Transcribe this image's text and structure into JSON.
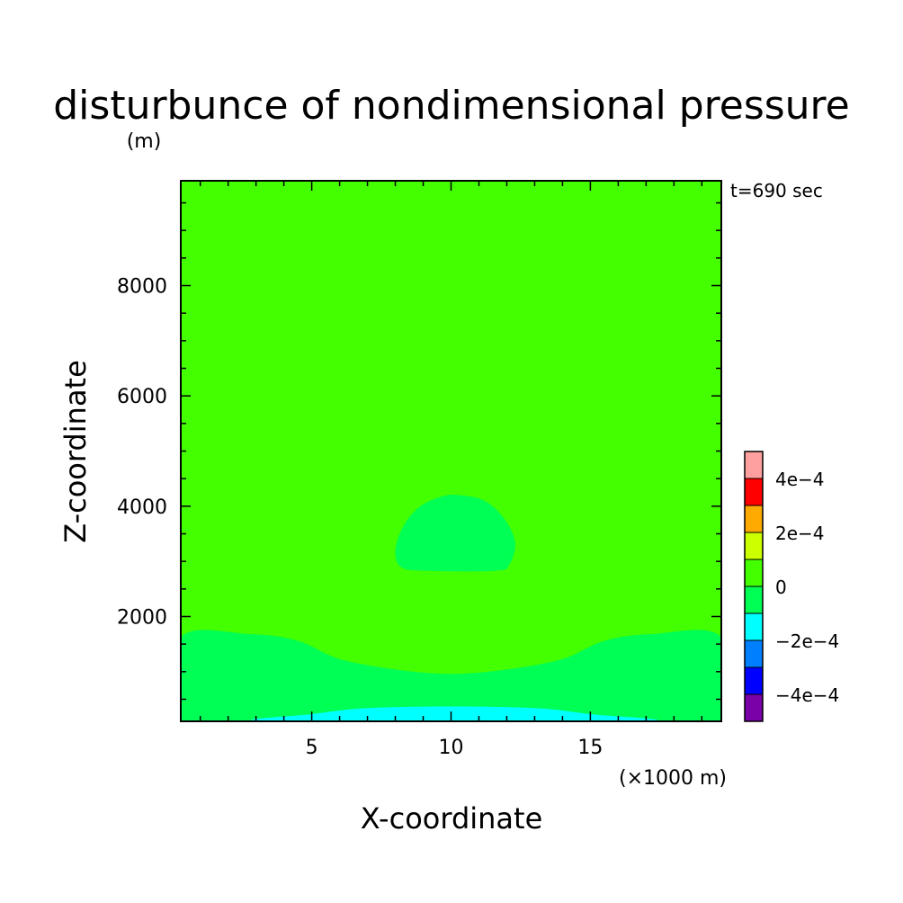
{
  "chart_data": {
    "type": "heatmap",
    "title": "disturbunce of nondimensional pressure",
    "units_label": "(m)",
    "time_label": "t=690 sec",
    "xlabel": "X-coordinate",
    "xunit_label": "(×1000 m)",
    "ylabel": "Z-coordinate",
    "xlim": [
      0.3,
      19.7
    ],
    "ylim": [
      100,
      9900
    ],
    "x_ticks": [
      5,
      10,
      15
    ],
    "y_ticks": [
      2000,
      4000,
      6000,
      8000
    ],
    "colorbar": {
      "levels": [
        -0.0005,
        -0.0004,
        -0.0003,
        -0.0002,
        -0.0001,
        0,
        0.0001,
        0.0002,
        0.0003,
        0.0004,
        0.0005
      ],
      "colors": [
        "#7a00a8",
        "#0000ff",
        "#007fff",
        "#00ffff",
        "#00ff55",
        "#44ff00",
        "#ccff00",
        "#ffaa00",
        "#ff0000",
        "#ffa0a0"
      ],
      "tick_labels": [
        "−4e−4",
        "−2e−4",
        "0",
        "2e−4",
        "4e−4"
      ]
    },
    "regions": [
      {
        "name": "background",
        "color": "#44ff00",
        "points": [
          [
            0.3,
            100
          ],
          [
            19.7,
            100
          ],
          [
            19.7,
            9900
          ],
          [
            0.3,
            9900
          ]
        ]
      },
      {
        "name": "low-level-band",
        "color": "#00ff55",
        "points": [
          [
            0.3,
            100
          ],
          [
            0.3,
            1620
          ],
          [
            2.8,
            1680
          ],
          [
            4.5,
            1560
          ],
          [
            6.0,
            1230
          ],
          [
            8.0,
            1040
          ],
          [
            10.0,
            960
          ],
          [
            12.0,
            1040
          ],
          [
            14.0,
            1230
          ],
          [
            15.5,
            1560
          ],
          [
            17.2,
            1680
          ],
          [
            19.7,
            1620
          ],
          [
            19.7,
            100
          ]
        ]
      },
      {
        "name": "surface-negative",
        "color": "#00ffff",
        "points": [
          [
            3.5,
            100
          ],
          [
            5.0,
            230
          ],
          [
            7.0,
            340
          ],
          [
            10.0,
            370
          ],
          [
            13.0,
            340
          ],
          [
            15.0,
            230
          ],
          [
            16.8,
            100
          ]
        ]
      },
      {
        "name": "mid-level-bubble",
        "color": "#00ff55",
        "points": [
          [
            8.2,
            2900
          ],
          [
            8.0,
            3200
          ],
          [
            8.3,
            3650
          ],
          [
            8.9,
            4000
          ],
          [
            9.7,
            4180
          ],
          [
            10.3,
            4200
          ],
          [
            11.2,
            4100
          ],
          [
            11.9,
            3780
          ],
          [
            12.3,
            3350
          ],
          [
            12.1,
            2950
          ],
          [
            11.6,
            2830
          ],
          [
            9.0,
            2830
          ]
        ]
      }
    ]
  }
}
